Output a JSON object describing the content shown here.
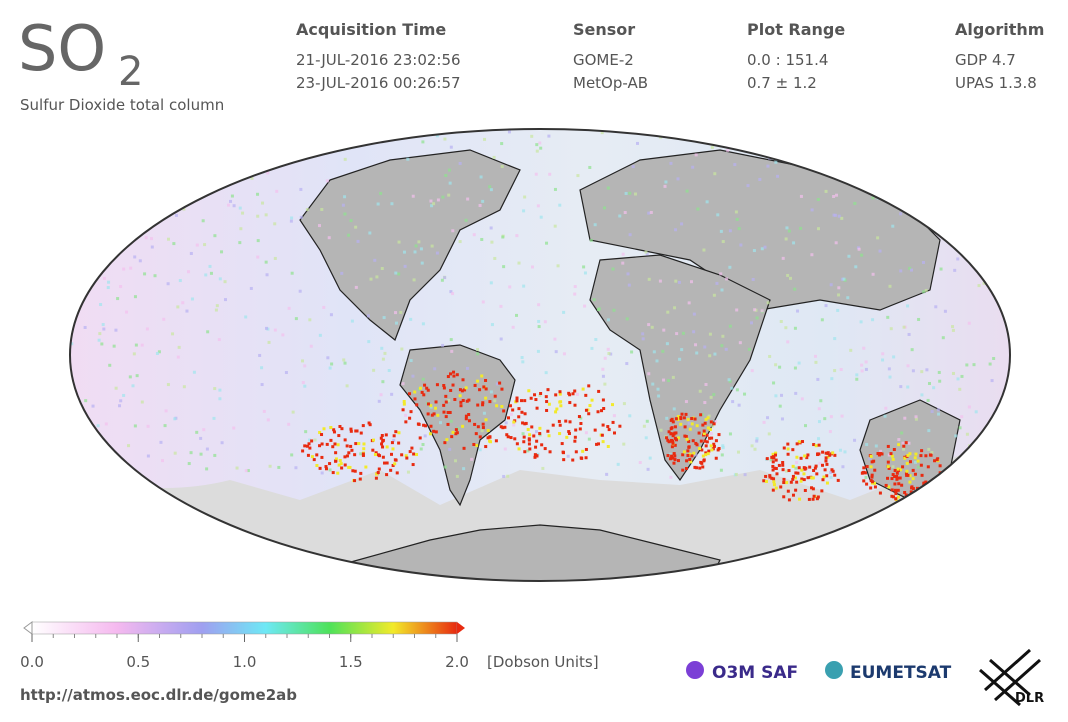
{
  "header": {
    "title": "SO",
    "title_sub": "2",
    "subtitle": "Sulfur Dioxide total column",
    "columns": [
      {
        "heading": "Acquisition Time",
        "lines": [
          "21-JUL-2016 23:02:56",
          "23-JUL-2016 00:26:57"
        ]
      },
      {
        "heading": "Sensor",
        "lines": [
          "GOME-2",
          "MetOp-AB"
        ]
      },
      {
        "heading": "Plot Range",
        "lines": [
          "0.0 : 151.4",
          "0.7 ± 1.2"
        ]
      },
      {
        "heading": "Algorithm",
        "lines": [
          "GDP 4.7",
          "UPAS 1.3.8"
        ]
      }
    ]
  },
  "colorbar": {
    "lim": [
      0,
      2
    ],
    "ticks": [
      {
        "value": 0,
        "label": "0.0"
      },
      {
        "value": 0.5,
        "label": "0.5"
      },
      {
        "value": 1,
        "label": "1.0"
      },
      {
        "value": 1.5,
        "label": "1.5"
      },
      {
        "value": 2,
        "label": "2.0"
      }
    ],
    "unit": "[Dobson Units]"
  },
  "footer": {
    "url": "http://atmos.eoc.dlr.de/gome2ab",
    "logos": [
      "O3M SAF",
      "EUMETSAT",
      "DLR"
    ]
  }
}
